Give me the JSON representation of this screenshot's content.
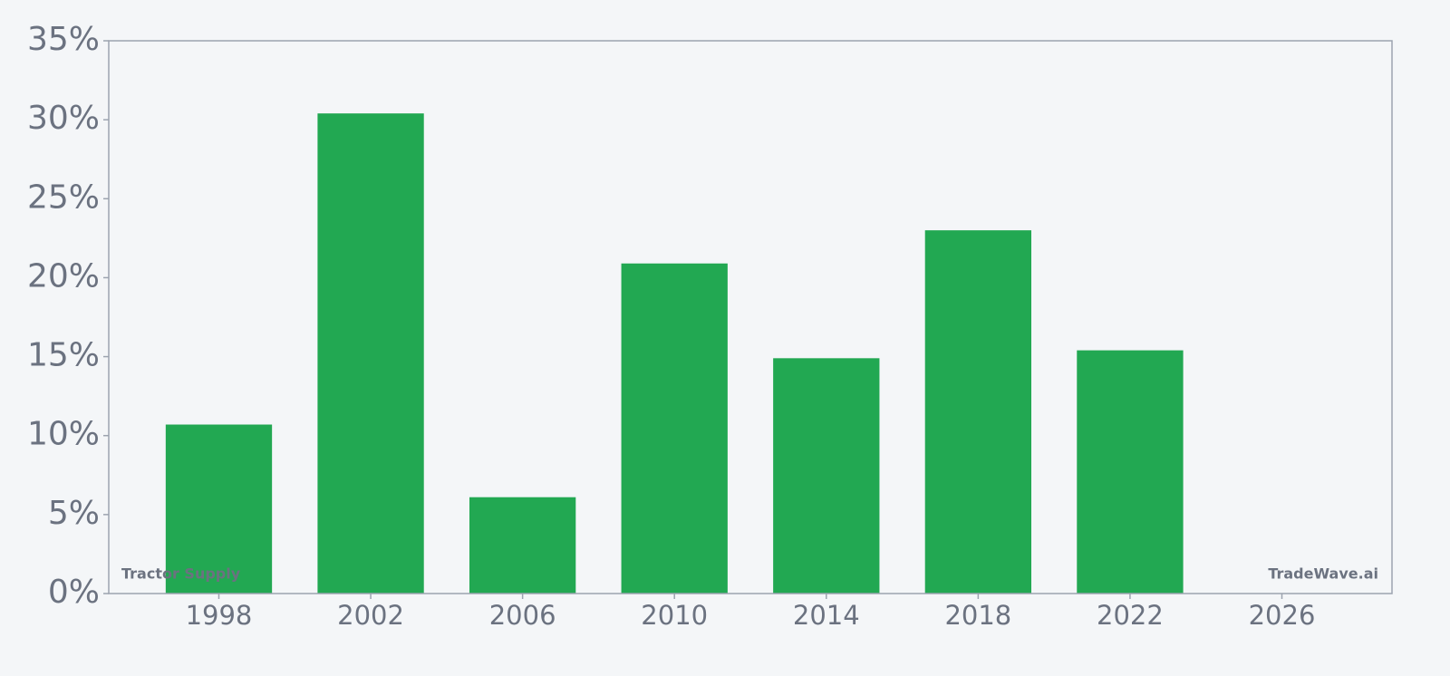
{
  "chart_data": {
    "type": "bar",
    "x": [
      1998,
      2002,
      2006,
      2010,
      2014,
      2018,
      2022
    ],
    "values": [
      10.7,
      30.4,
      6.1,
      20.9,
      14.9,
      23.0,
      15.4
    ],
    "color": "#22a852",
    "xlim": [
      1995.1,
      2028.9
    ],
    "xticks": [
      1998,
      2002,
      2006,
      2010,
      2014,
      2018,
      2022,
      2026
    ],
    "ylim": [
      0,
      35
    ],
    "yticks": [
      {
        "value": 0,
        "label": "0%"
      },
      {
        "value": 5,
        "label": "5%"
      },
      {
        "value": 10,
        "label": "10%"
      },
      {
        "value": 15,
        "label": "15%"
      },
      {
        "value": 20,
        "label": "20%"
      },
      {
        "value": 25,
        "label": "25%"
      },
      {
        "value": 30,
        "label": "30%"
      },
      {
        "value": 35,
        "label": "35%"
      }
    ],
    "grid": false,
    "watermark_left": "Tractor Supply",
    "watermark_right": "TradeWave.ai"
  }
}
